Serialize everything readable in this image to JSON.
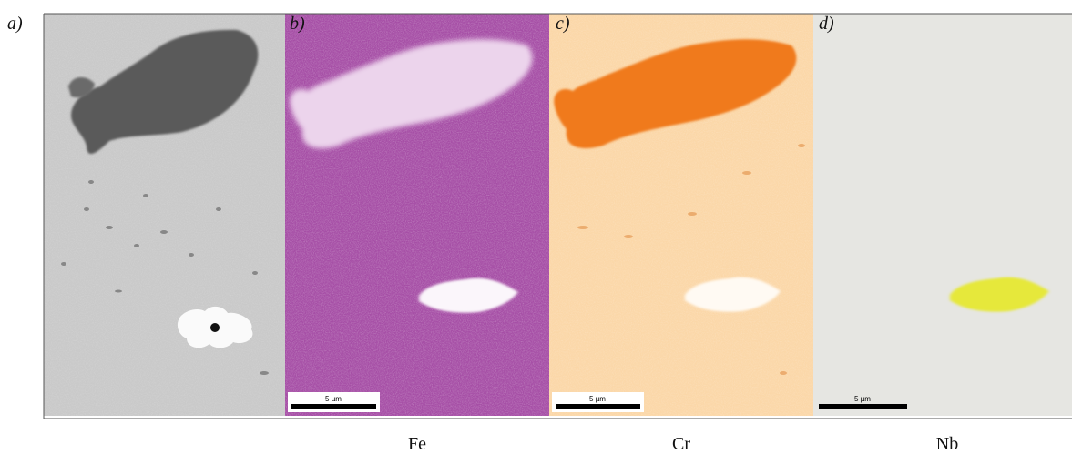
{
  "panels": [
    {
      "label": "a)"
    },
    {
      "label": "b)",
      "scale_bar": "5 µm",
      "element": "Fe"
    },
    {
      "label": "c)",
      "scale_bar": "5 µm",
      "element": "Cr"
    },
    {
      "label": "d)",
      "scale_bar": "5 µm",
      "element": "Nb"
    }
  ]
}
